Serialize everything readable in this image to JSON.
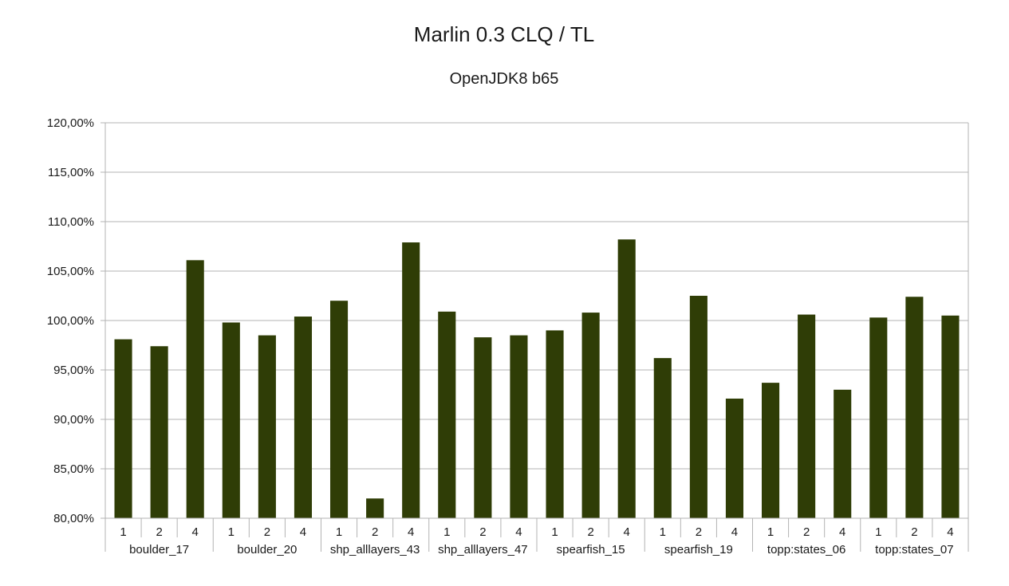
{
  "chart_data": {
    "type": "bar",
    "title": "Marlin 0.3 CLQ / TL",
    "subtitle": "OpenJDK8 b65",
    "xlabel": "",
    "ylabel": "",
    "ylim": [
      80,
      120
    ],
    "ytick_step": 5,
    "ytick_labels": [
      "80,00%",
      "85,00%",
      "90,00%",
      "95,00%",
      "100,00%",
      "105,00%",
      "110,00%",
      "115,00%",
      "120,00%"
    ],
    "grid": true,
    "legend": "none",
    "bar_color": "#2f3d06",
    "groups": [
      {
        "name": "boulder_17",
        "categories": [
          "1",
          "2",
          "4"
        ],
        "values": [
          98.1,
          97.4,
          106.1
        ]
      },
      {
        "name": "boulder_20",
        "categories": [
          "1",
          "2",
          "4"
        ],
        "values": [
          99.8,
          98.5,
          100.4
        ]
      },
      {
        "name": "shp_alllayers_43",
        "categories": [
          "1",
          "2",
          "4"
        ],
        "values": [
          102.0,
          82.0,
          107.9
        ]
      },
      {
        "name": "shp_alllayers_47",
        "categories": [
          "1",
          "2",
          "4"
        ],
        "values": [
          100.9,
          98.3,
          98.5
        ]
      },
      {
        "name": "spearfish_15",
        "categories": [
          "1",
          "2",
          "4"
        ],
        "values": [
          99.0,
          100.8,
          108.2
        ]
      },
      {
        "name": "spearfish_19",
        "categories": [
          "1",
          "2",
          "4"
        ],
        "values": [
          96.2,
          102.5,
          92.1
        ]
      },
      {
        "name": "topp:states_06",
        "categories": [
          "1",
          "2",
          "4"
        ],
        "values": [
          93.7,
          100.6,
          93.0
        ]
      },
      {
        "name": "topp:states_07",
        "categories": [
          "1",
          "2",
          "4"
        ],
        "values": [
          100.3,
          102.4,
          100.5
        ]
      }
    ]
  }
}
